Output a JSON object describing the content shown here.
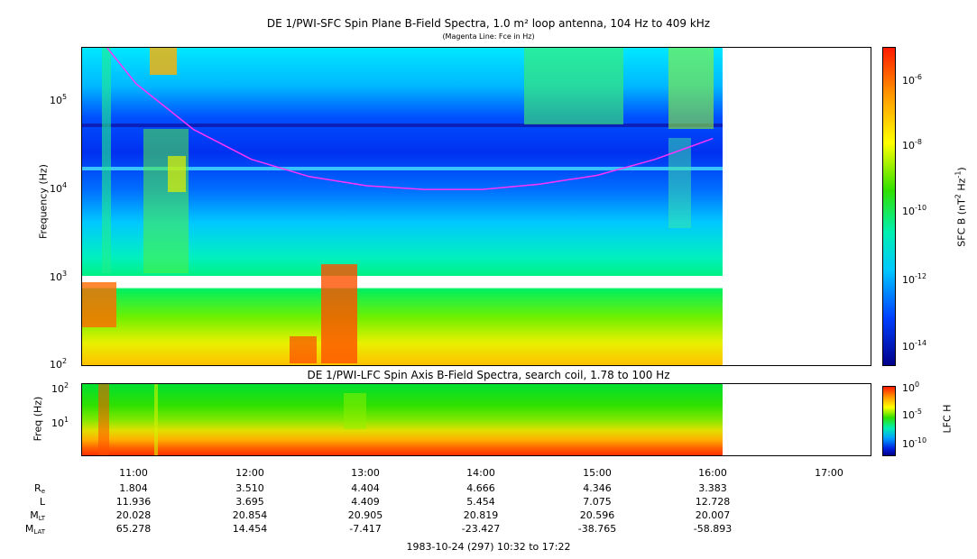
{
  "top_panel": {
    "title": "DE 1/PWI-SFC  Spin Plane B-Field Spectra, 1.0 m² loop antenna, 104 Hz to 409 kHz",
    "subtitle": "(Magenta Line: Fce in Hz)",
    "ylabel": "Frequency (Hz)",
    "yticks": [
      {
        "base": "10",
        "exp": "5"
      },
      {
        "base": "10",
        "exp": "4"
      },
      {
        "base": "10",
        "exp": "3"
      },
      {
        "base": "10",
        "exp": "2"
      }
    ],
    "colorbar_label": "SFC B (nT2 Hz-1)",
    "colorbar_label_parts": {
      "a": "SFC B (nT",
      "b": "2",
      "c": " Hz",
      "d": "-1",
      "e": ")"
    },
    "colorbar_ticks": [
      {
        "base": "10",
        "exp": "-6"
      },
      {
        "base": "10",
        "exp": "-8"
      },
      {
        "base": "10",
        "exp": "-10"
      },
      {
        "base": "10",
        "exp": "-12"
      },
      {
        "base": "10",
        "exp": "-14"
      }
    ]
  },
  "bottom_panel": {
    "title": "DE 1/PWI-LFC  Spin Axis B-Field Spectra, search coil, 1.78 to 100 Hz",
    "ylabel": "Freq (Hz)",
    "yticks": [
      {
        "base": "10",
        "exp": "2"
      },
      {
        "base": "10",
        "exp": "1"
      }
    ],
    "colorbar_label": "LFC H",
    "colorbar_ticks": [
      {
        "base": "10",
        "exp": "0"
      },
      {
        "base": "10",
        "exp": "-5"
      },
      {
        "base": "10",
        "exp": "-10"
      }
    ]
  },
  "x_axis": {
    "ticks": [
      "11:00",
      "12:00",
      "13:00",
      "14:00",
      "15:00",
      "16:00",
      "17:00"
    ],
    "footer": "1983-10-24 (297) 10:32 to 17:22"
  },
  "ephemeris": {
    "labels": [
      {
        "main": "R",
        "sub": "e"
      },
      {
        "main": "L",
        "sub": ""
      },
      {
        "main": "M",
        "sub": "LT"
      },
      {
        "main": "M",
        "sub": "LAT"
      }
    ],
    "rows": [
      [
        "1.804",
        "3.510",
        "4.404",
        "4.666",
        "4.346",
        "3.383"
      ],
      [
        "11.936",
        "3.695",
        "4.409",
        "5.454",
        "7.075",
        "12.728"
      ],
      [
        "20.028",
        "20.854",
        "20.905",
        "20.819",
        "20.596",
        "20.007"
      ],
      [
        "65.278",
        "14.454",
        "-7.417",
        "-23.427",
        "-38.765",
        "-58.893"
      ]
    ]
  },
  "chart_data": {
    "type": "heatmap",
    "x_range_hours": [
      10.533,
      17.367
    ],
    "data_end_hour": 16.083,
    "top_panel": {
      "y_range_hz": [
        100,
        409000
      ],
      "yscale": "log",
      "colorbar_range": [
        1e-15,
        1e-05
      ],
      "colorbar_scale": "log",
      "fce_curve": {
        "x": [
          10.75,
          11.0,
          11.5,
          12.0,
          12.5,
          13.0,
          13.5,
          14.0,
          14.5,
          15.0,
          15.5,
          16.0
        ],
        "y": [
          409000,
          160000,
          48000,
          22000,
          14000,
          11000,
          10000,
          10000,
          11500,
          14500,
          22000,
          38000
        ]
      }
    },
    "bottom_panel": {
      "y_range_hz": [
        1.78,
        100
      ],
      "yscale": "log",
      "colorbar_range": [
        1e-12,
        1
      ],
      "colorbar_scale": "log"
    },
    "colors": {
      "fce": "#ff33ff",
      "colormap": [
        "#0a0a8a",
        "#0033ff",
        "#00ccff",
        "#00f0a0",
        "#44ee00",
        "#ffff00",
        "#ff9900",
        "#ff2200"
      ]
    }
  }
}
